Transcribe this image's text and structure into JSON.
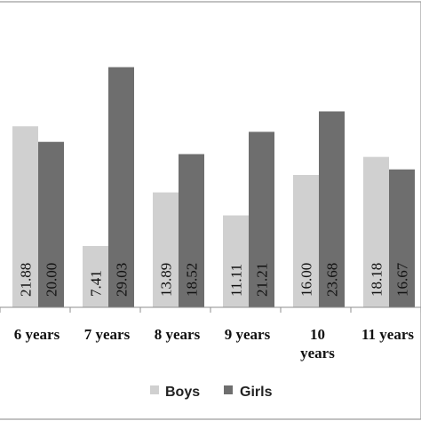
{
  "chart_data": {
    "type": "bar",
    "categories": [
      "6 years",
      "7 years",
      "8 years",
      "9 years",
      "10 years",
      "11 years"
    ],
    "category_lines": [
      [
        "6 years"
      ],
      [
        "7 years"
      ],
      [
        "8 years"
      ],
      [
        "9 years"
      ],
      [
        "10",
        "years"
      ],
      [
        "11 years"
      ]
    ],
    "series": [
      {
        "name": "Boys",
        "values": [
          21.88,
          7.41,
          13.89,
          11.11,
          16.0,
          18.18
        ],
        "labels": [
          "21.88",
          "7.41",
          "13.89",
          "11.11",
          "16.00",
          "18.18"
        ],
        "color": "#d0d0d0"
      },
      {
        "name": "Girls",
        "values": [
          20.0,
          29.03,
          18.52,
          21.21,
          23.68,
          16.67
        ],
        "labels": [
          "20.00",
          "29.03",
          "18.52",
          "21.21",
          "23.68",
          "16.67"
        ],
        "color": "#6e6e6e"
      }
    ],
    "ylim": [
      0,
      35
    ],
    "grid": false,
    "legend_position": "bottom"
  }
}
